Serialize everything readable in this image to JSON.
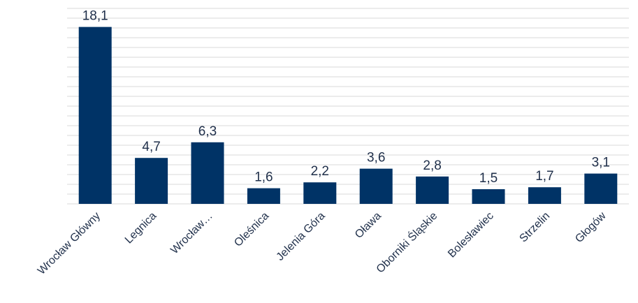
{
  "chart_data": {
    "type": "bar",
    "title": "",
    "xlabel": "",
    "ylabel": "",
    "ylim": [
      0,
      20
    ],
    "grid": true,
    "bar_color": "#003366",
    "categories": [
      "Wrocław Główny",
      "Legnica",
      "Wrocław…",
      "Oleśnica",
      "Jelenia Góra",
      "Oława",
      "Oborniki Śląskie",
      "Bolesławiec",
      "Strzelin",
      "Głogów"
    ],
    "values": [
      18.1,
      4.7,
      6.3,
      1.6,
      2.2,
      3.6,
      2.8,
      1.5,
      1.7,
      3.1
    ],
    "value_labels": [
      "18,1",
      "4,7",
      "6,3",
      "1,6",
      "2,2",
      "3,6",
      "2,8",
      "1,5",
      "1,7",
      "3,1"
    ]
  }
}
